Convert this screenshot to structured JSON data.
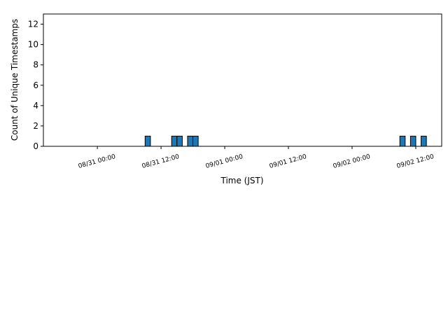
{
  "chart_data": {
    "type": "histogram",
    "xlabel": "Time (JST)",
    "ylabel": "Count of Unique Timestamps",
    "bins": [
      "08/31 09:00",
      "08/31 10:00",
      "08/31 11:00",
      "08/31 12:00",
      "08/31 13:00",
      "08/31 14:00",
      "08/31 15:00",
      "08/31 16:00",
      "08/31 17:00",
      "08/31 18:00",
      "08/31 19:00",
      "08/31 20:00",
      "08/31 21:00",
      "08/31 22:00",
      "08/31 23:00",
      "09/01 00:00",
      "09/01 01:00",
      "09/01 02:00",
      "09/01 03:00",
      "09/01 04:00",
      "09/01 05:00",
      "09/01 06:00",
      "09/01 07:00",
      "09/01 08:00",
      "09/01 09:00",
      "09/01 10:00",
      "09/01 11:00",
      "09/01 12:00",
      "09/01 13:00",
      "09/01 14:00",
      "09/01 15:00",
      "09/01 16:00",
      "09/01 17:00",
      "09/01 18:00",
      "09/01 19:00",
      "09/01 20:00",
      "09/01 21:00",
      "09/01 22:00",
      "09/01 23:00",
      "09/02 00:00",
      "09/02 01:00",
      "09/02 02:00",
      "09/02 03:00",
      "09/02 04:00",
      "09/02 05:00",
      "09/02 06:00",
      "09/02 07:00",
      "09/02 08:00",
      "09/02 09:00",
      "09/02 10:00",
      "09/02 11:00",
      "09/02 12:00",
      "09/02 13:00",
      "09/02 14:00"
    ],
    "values": [
      1,
      0,
      0,
      0,
      0,
      1,
      1,
      0,
      1,
      1,
      0,
      0,
      0,
      0,
      0,
      0,
      0,
      0,
      0,
      0,
      0,
      0,
      0,
      0,
      0,
      0,
      0,
      0,
      0,
      0,
      0,
      0,
      0,
      0,
      0,
      0,
      0,
      0,
      0,
      0,
      0,
      0,
      0,
      0,
      0,
      0,
      0,
      0,
      1,
      0,
      1,
      0,
      1
    ],
    "color": "#1f77b4",
    "edgecolor": "#000000",
    "xlim": [
      "08/30 13:50",
      "09/02 16:53"
    ],
    "xticks": [
      "08/31 00:00",
      "08/31 12:00",
      "09/01 00:00",
      "09/01 12:00",
      "09/02 00:00",
      "09/02 12:00"
    ],
    "ylim": [
      0,
      13
    ],
    "yticks": [
      0,
      2,
      4,
      6,
      8,
      10,
      12
    ]
  }
}
